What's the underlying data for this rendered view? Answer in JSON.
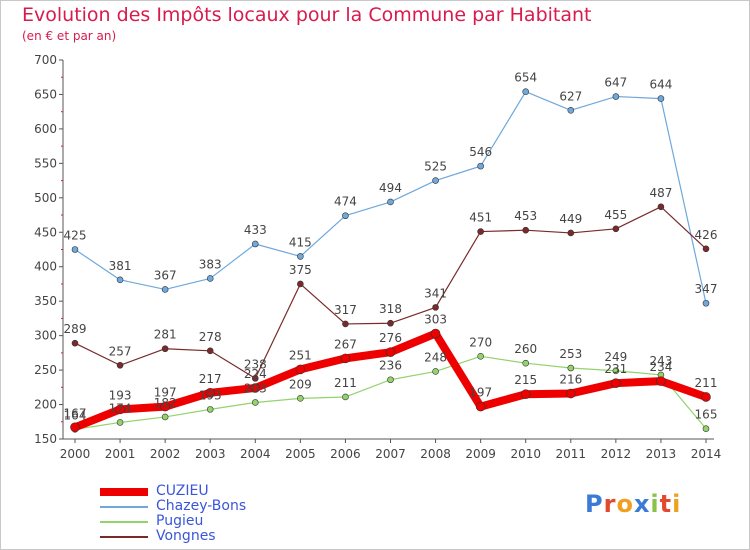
{
  "title": "Evolution des Impôts locaux pour la Commune par Habitant",
  "subtitle": "(en € et par an)",
  "logo": {
    "text": "Proxiti",
    "letter_colors": [
      "#3a7bd5",
      "#e24a2f",
      "#f0a020",
      "#3a7bd5",
      "#8bc34a",
      "#e24a2f",
      "#f0a020"
    ]
  },
  "chart_data": {
    "type": "line",
    "title": "Evolution des Impôts locaux pour la Commune par Habitant",
    "subtitle": "(en € et par an)",
    "xlabel": "",
    "ylabel": "",
    "x": [
      "2000",
      "2001",
      "2002",
      "2003",
      "2004",
      "2005",
      "2006",
      "2007",
      "2008",
      "2009",
      "2010",
      "2011",
      "2012",
      "2013",
      "2014"
    ],
    "ylim": [
      150,
      700
    ],
    "yticks": [
      "150",
      "200",
      "250",
      "300",
      "350",
      "400",
      "450",
      "500",
      "550",
      "600",
      "650",
      "700"
    ],
    "grid": false,
    "legend_position": "bottom-left",
    "series": [
      {
        "name": "CUZIEU",
        "color": "#ee0000",
        "values": [
          167,
          193,
          197,
          217,
          224,
          251,
          267,
          276,
          303,
          197,
          215,
          216,
          231,
          234,
          211
        ],
        "labels": [
          "167",
          "193",
          "197",
          "217",
          "224",
          "251",
          "267",
          "276",
          "303",
          "197",
          "215",
          "216",
          "231",
          "234",
          "211"
        ]
      },
      {
        "name": "Chazey-Bons",
        "color": "#6fa8dc",
        "values": [
          425,
          381,
          367,
          383,
          433,
          415,
          474,
          494,
          525,
          546,
          654,
          627,
          647,
          644,
          347
        ],
        "labels": [
          "425",
          "381",
          "367",
          "383",
          "433",
          "415",
          "474",
          "494",
          "525",
          "546",
          "654",
          "627",
          "647",
          "644",
          "347"
        ]
      },
      {
        "name": "Pugieu",
        "color": "#93d36b",
        "values": [
          164,
          174,
          182,
          193,
          203,
          209,
          211,
          236,
          248,
          270,
          260,
          253,
          249,
          243,
          165
        ],
        "labels": [
          "164",
          "174",
          "182",
          "193",
          "203",
          "209",
          "211",
          "236",
          "248",
          "270",
          "260",
          "253",
          "249",
          "243",
          "165"
        ]
      },
      {
        "name": "Vongnes",
        "color": "#7a2a2a",
        "values": [
          289,
          257,
          281,
          278,
          238,
          375,
          317,
          318,
          341,
          451,
          453,
          449,
          455,
          487,
          426
        ],
        "labels": [
          "289",
          "257",
          "281",
          "278",
          "238",
          "375",
          "317",
          "318",
          "341",
          "451",
          "453",
          "449",
          "455",
          "487",
          "426"
        ]
      }
    ]
  }
}
